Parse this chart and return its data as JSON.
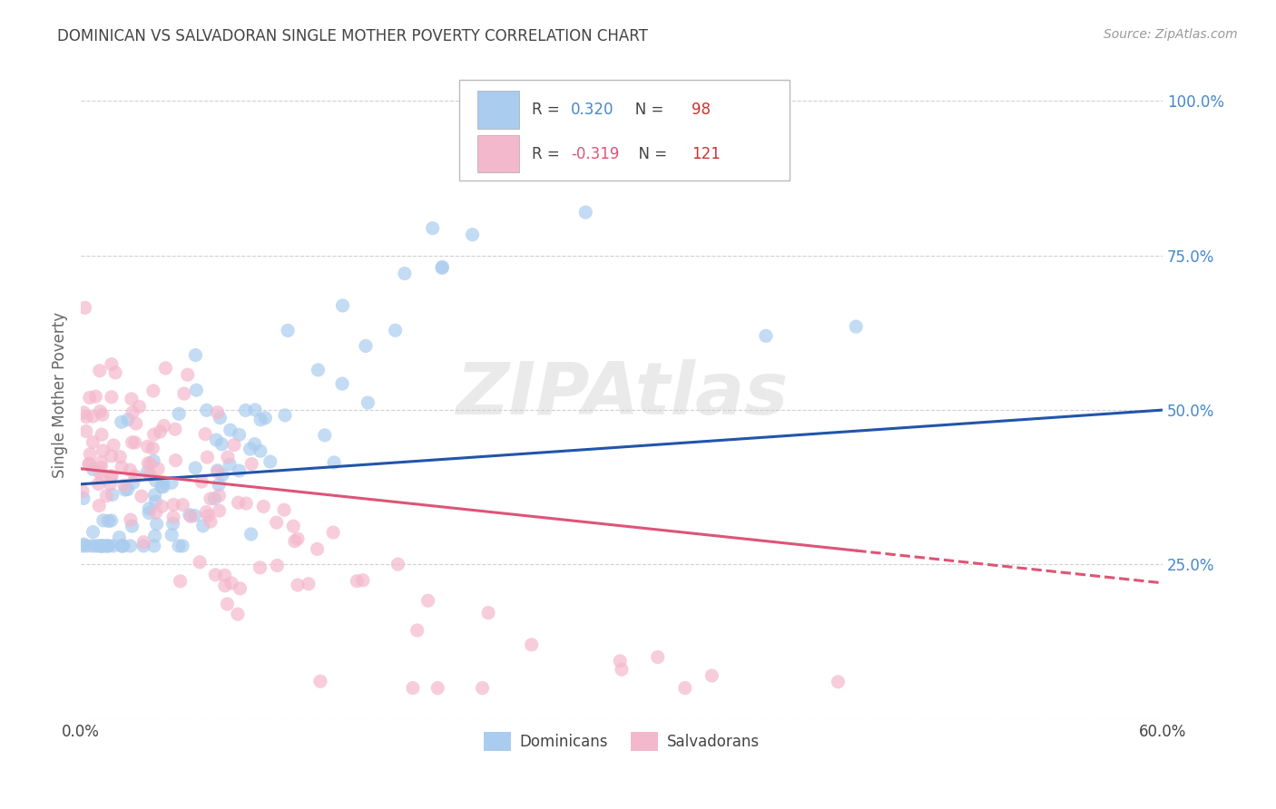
{
  "title": "DOMINICAN VS SALVADORAN SINGLE MOTHER POVERTY CORRELATION CHART",
  "source": "Source: ZipAtlas.com",
  "ylabel": "Single Mother Poverty",
  "xlim": [
    0.0,
    0.6
  ],
  "ylim": [
    0.0,
    1.05
  ],
  "dominican_R": 0.32,
  "dominican_N": 98,
  "salvadoran_R": -0.319,
  "salvadoran_N": 121,
  "legend_labels": [
    "Dominicans",
    "Salvadorans"
  ],
  "dominican_color": "#aaccee",
  "salvadoran_color": "#f4b8cc",
  "dominican_line_color": "#2255aa",
  "salvadoran_line_color": "#dd5577",
  "watermark": "ZIPAtlas",
  "background_color": "#ffffff",
  "grid_color": "#cccccc",
  "title_color": "#444444",
  "ytick_color": "#4488cc",
  "xtick_color": "#444444",
  "seed": 12345
}
